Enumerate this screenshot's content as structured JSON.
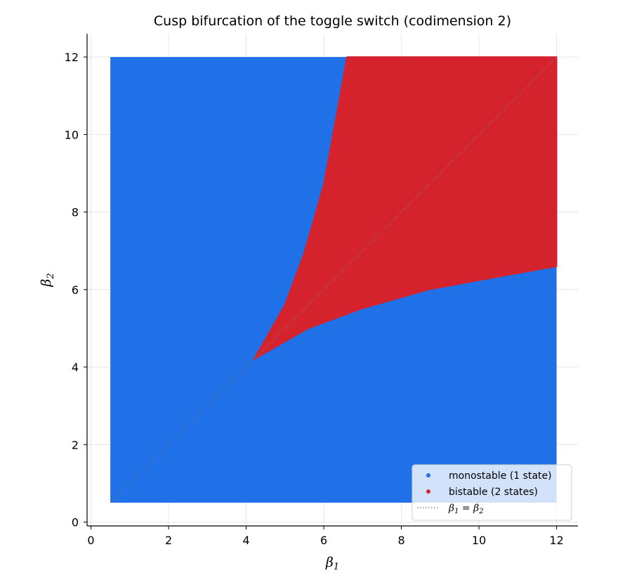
{
  "chart_data": {
    "type": "scatter",
    "title": "Cusp bifurcation of the toggle switch (codimension 2)",
    "xlabel": {
      "base": "β",
      "sub": "1"
    },
    "ylabel": {
      "base": "β",
      "sub": "2"
    },
    "xlim": [
      -0.1,
      12.55
    ],
    "ylim": [
      -0.1,
      12.6
    ],
    "x_ticks": [
      0,
      2,
      4,
      6,
      8,
      10,
      12
    ],
    "y_ticks": [
      0,
      2,
      4,
      6,
      8,
      10,
      12
    ],
    "grid": true,
    "legend_position": "lower-right",
    "parameter_range": {
      "x": [
        0.5,
        12
      ],
      "y": [
        0.5,
        12
      ]
    },
    "cusp_point": [
      4.2,
      4.2
    ],
    "series": [
      {
        "name": "monostable (1 state)",
        "color": "#2070e8",
        "marker": "dot"
      },
      {
        "name": "bistable (2 states)",
        "color": "#d5232d",
        "marker": "dot"
      }
    ],
    "reference_line": {
      "label": {
        "a": "β",
        "a_sub": "1",
        "eq": " = ",
        "b": "β",
        "b_sub": "2"
      },
      "style": "dotted",
      "color": "#777777",
      "x": [
        0.5,
        12
      ],
      "y": [
        0.5,
        12
      ]
    },
    "bistable_boundary": {
      "upper": [
        [
          4.2,
          4.2
        ],
        [
          4.5,
          4.72
        ],
        [
          5.0,
          5.6
        ],
        [
          5.5,
          6.95
        ],
        [
          6.0,
          8.7
        ],
        [
          6.35,
          10.6
        ],
        [
          6.6,
          12.0
        ]
      ],
      "lower": [
        [
          4.2,
          4.2
        ],
        [
          4.72,
          4.5
        ],
        [
          5.6,
          5.0
        ],
        [
          6.95,
          5.5
        ],
        [
          8.7,
          6.0
        ],
        [
          10.6,
          6.35
        ],
        [
          12.0,
          6.6
        ]
      ]
    }
  }
}
